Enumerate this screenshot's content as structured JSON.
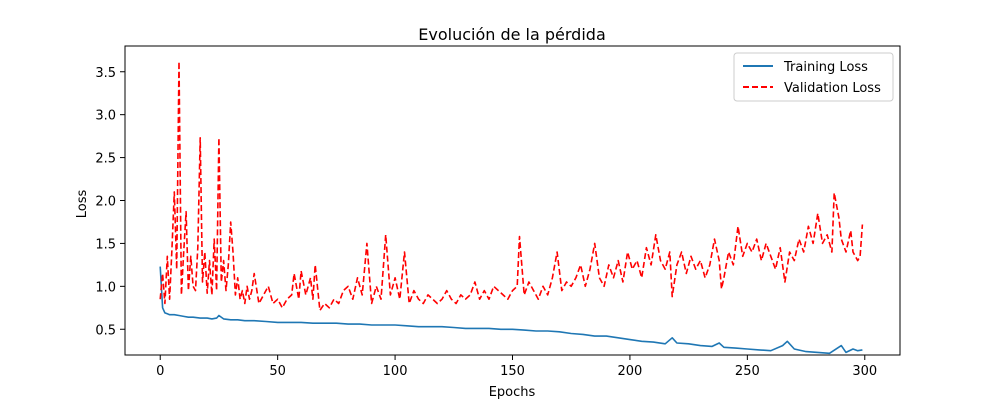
{
  "chart_data": {
    "type": "line",
    "title": "Evolución de la pérdida",
    "xlabel": "Epochs",
    "ylabel": "Loss",
    "xlim": [
      -15,
      315
    ],
    "ylim": [
      0.2,
      3.8
    ],
    "xticks": [
      0,
      50,
      100,
      150,
      200,
      250,
      300
    ],
    "yticks": [
      0.5,
      1.0,
      1.5,
      2.0,
      2.5,
      3.0,
      3.5
    ],
    "grid": false,
    "legend": "top-right",
    "series": [
      {
        "name": "Training Loss",
        "color": "#1f77b4",
        "dash": "solid",
        "points": [
          [
            0,
            1.23
          ],
          [
            1,
            0.75
          ],
          [
            2,
            0.69
          ],
          [
            3,
            0.68
          ],
          [
            4,
            0.67
          ],
          [
            6,
            0.67
          ],
          [
            8,
            0.66
          ],
          [
            10,
            0.65
          ],
          [
            12,
            0.64
          ],
          [
            14,
            0.64
          ],
          [
            17,
            0.63
          ],
          [
            20,
            0.63
          ],
          [
            22,
            0.62
          ],
          [
            24,
            0.63
          ],
          [
            25,
            0.66
          ],
          [
            27,
            0.62
          ],
          [
            30,
            0.61
          ],
          [
            33,
            0.61
          ],
          [
            36,
            0.6
          ],
          [
            40,
            0.6
          ],
          [
            45,
            0.59
          ],
          [
            50,
            0.58
          ],
          [
            55,
            0.58
          ],
          [
            60,
            0.58
          ],
          [
            65,
            0.57
          ],
          [
            70,
            0.57
          ],
          [
            75,
            0.57
          ],
          [
            80,
            0.56
          ],
          [
            85,
            0.56
          ],
          [
            90,
            0.55
          ],
          [
            95,
            0.55
          ],
          [
            100,
            0.55
          ],
          [
            105,
            0.54
          ],
          [
            110,
            0.53
          ],
          [
            115,
            0.53
          ],
          [
            120,
            0.53
          ],
          [
            125,
            0.52
          ],
          [
            130,
            0.51
          ],
          [
            135,
            0.51
          ],
          [
            140,
            0.51
          ],
          [
            145,
            0.5
          ],
          [
            150,
            0.5
          ],
          [
            155,
            0.49
          ],
          [
            160,
            0.48
          ],
          [
            165,
            0.48
          ],
          [
            170,
            0.47
          ],
          [
            175,
            0.45
          ],
          [
            180,
            0.44
          ],
          [
            185,
            0.42
          ],
          [
            190,
            0.42
          ],
          [
            195,
            0.4
          ],
          [
            200,
            0.38
          ],
          [
            205,
            0.36
          ],
          [
            210,
            0.35
          ],
          [
            215,
            0.33
          ],
          [
            218,
            0.4
          ],
          [
            220,
            0.34
          ],
          [
            225,
            0.33
          ],
          [
            230,
            0.31
          ],
          [
            235,
            0.3
          ],
          [
            238,
            0.34
          ],
          [
            240,
            0.29
          ],
          [
            245,
            0.28
          ],
          [
            250,
            0.27
          ],
          [
            255,
            0.26
          ],
          [
            260,
            0.25
          ],
          [
            265,
            0.31
          ],
          [
            267,
            0.36
          ],
          [
            270,
            0.27
          ],
          [
            275,
            0.24
          ],
          [
            280,
            0.23
          ],
          [
            285,
            0.22
          ],
          [
            290,
            0.31
          ],
          [
            292,
            0.23
          ],
          [
            295,
            0.27
          ],
          [
            297,
            0.25
          ],
          [
            299,
            0.26
          ]
        ]
      },
      {
        "name": "Validation Loss",
        "color": "#ff0000",
        "dash": "dashed",
        "points": [
          [
            0,
            0.85
          ],
          [
            1,
            1.15
          ],
          [
            2,
            0.8
          ],
          [
            3,
            1.35
          ],
          [
            4,
            0.85
          ],
          [
            5,
            1.45
          ],
          [
            6,
            2.1
          ],
          [
            7,
            1.2
          ],
          [
            8,
            3.62
          ],
          [
            9,
            0.9
          ],
          [
            10,
            1.4
          ],
          [
            11,
            1.87
          ],
          [
            12,
            0.95
          ],
          [
            13,
            1.35
          ],
          [
            14,
            1.0
          ],
          [
            15,
            0.95
          ],
          [
            16,
            1.45
          ],
          [
            17,
            2.73
          ],
          [
            18,
            1.05
          ],
          [
            19,
            1.4
          ],
          [
            20,
            0.92
          ],
          [
            21,
            1.3
          ],
          [
            22,
            0.9
          ],
          [
            23,
            1.55
          ],
          [
            24,
            0.95
          ],
          [
            25,
            2.73
          ],
          [
            26,
            1.05
          ],
          [
            27,
            1.3
          ],
          [
            28,
            0.95
          ],
          [
            29,
            1.25
          ],
          [
            30,
            1.75
          ],
          [
            31,
            1.4
          ],
          [
            32,
            0.9
          ],
          [
            33,
            1.1
          ],
          [
            34,
            0.85
          ],
          [
            35,
            0.95
          ],
          [
            36,
            0.8
          ],
          [
            37,
            1.0
          ],
          [
            38,
            0.85
          ],
          [
            39,
            0.95
          ],
          [
            40,
            1.15
          ],
          [
            42,
            0.8
          ],
          [
            44,
            0.9
          ],
          [
            46,
            1.0
          ],
          [
            48,
            0.8
          ],
          [
            50,
            0.85
          ],
          [
            52,
            0.75
          ],
          [
            54,
            0.85
          ],
          [
            56,
            0.9
          ],
          [
            57,
            1.15
          ],
          [
            59,
            0.85
          ],
          [
            60,
            1.18
          ],
          [
            62,
            0.9
          ],
          [
            64,
            1.1
          ],
          [
            65,
            0.85
          ],
          [
            66,
            1.25
          ],
          [
            68,
            0.72
          ],
          [
            70,
            0.8
          ],
          [
            72,
            0.75
          ],
          [
            74,
            0.85
          ],
          [
            76,
            0.8
          ],
          [
            78,
            0.95
          ],
          [
            80,
            1.0
          ],
          [
            82,
            0.85
          ],
          [
            84,
            1.1
          ],
          [
            86,
            0.9
          ],
          [
            88,
            1.5
          ],
          [
            90,
            0.8
          ],
          [
            92,
            1.0
          ],
          [
            94,
            0.85
          ],
          [
            96,
            1.6
          ],
          [
            98,
            0.9
          ],
          [
            100,
            1.1
          ],
          [
            102,
            0.85
          ],
          [
            104,
            1.4
          ],
          [
            106,
            0.8
          ],
          [
            108,
            0.95
          ],
          [
            110,
            0.85
          ],
          [
            112,
            0.8
          ],
          [
            114,
            0.9
          ],
          [
            116,
            0.85
          ],
          [
            118,
            0.8
          ],
          [
            120,
            0.85
          ],
          [
            122,
            0.95
          ],
          [
            124,
            0.85
          ],
          [
            126,
            0.8
          ],
          [
            128,
            0.9
          ],
          [
            130,
            0.85
          ],
          [
            132,
            0.9
          ],
          [
            134,
            1.05
          ],
          [
            136,
            0.85
          ],
          [
            138,
            0.95
          ],
          [
            140,
            0.85
          ],
          [
            142,
            1.0
          ],
          [
            144,
            0.95
          ],
          [
            146,
            0.9
          ],
          [
            148,
            0.85
          ],
          [
            150,
            0.95
          ],
          [
            152,
            1.0
          ],
          [
            153,
            1.58
          ],
          [
            155,
            0.9
          ],
          [
            157,
            1.05
          ],
          [
            159,
            0.95
          ],
          [
            161,
            0.85
          ],
          [
            163,
            1.0
          ],
          [
            165,
            0.9
          ],
          [
            167,
            1.1
          ],
          [
            169,
            1.4
          ],
          [
            171,
            0.95
          ],
          [
            173,
            1.05
          ],
          [
            175,
            1.0
          ],
          [
            177,
            1.1
          ],
          [
            179,
            1.25
          ],
          [
            181,
            1.0
          ],
          [
            183,
            1.2
          ],
          [
            185,
            1.5
          ],
          [
            187,
            1.1
          ],
          [
            189,
            1.0
          ],
          [
            191,
            1.25
          ],
          [
            193,
            1.1
          ],
          [
            195,
            1.3
          ],
          [
            197,
            1.05
          ],
          [
            199,
            1.4
          ],
          [
            201,
            1.2
          ],
          [
            203,
            1.3
          ],
          [
            205,
            1.1
          ],
          [
            207,
            1.45
          ],
          [
            209,
            1.25
          ],
          [
            211,
            1.6
          ],
          [
            213,
            1.3
          ],
          [
            215,
            1.2
          ],
          [
            217,
            1.4
          ],
          [
            218,
            0.88
          ],
          [
            220,
            1.25
          ],
          [
            222,
            1.4
          ],
          [
            224,
            1.15
          ],
          [
            226,
            1.35
          ],
          [
            228,
            1.2
          ],
          [
            230,
            1.3
          ],
          [
            232,
            1.1
          ],
          [
            234,
            1.25
          ],
          [
            236,
            1.55
          ],
          [
            238,
            1.3
          ],
          [
            239,
            0.97
          ],
          [
            240,
            1.1
          ],
          [
            242,
            1.4
          ],
          [
            244,
            1.25
          ],
          [
            246,
            1.7
          ],
          [
            248,
            1.35
          ],
          [
            250,
            1.5
          ],
          [
            252,
            1.4
          ],
          [
            254,
            1.55
          ],
          [
            256,
            1.3
          ],
          [
            258,
            1.5
          ],
          [
            260,
            1.35
          ],
          [
            262,
            1.2
          ],
          [
            264,
            1.45
          ],
          [
            266,
            1.05
          ],
          [
            268,
            1.4
          ],
          [
            270,
            1.3
          ],
          [
            272,
            1.55
          ],
          [
            274,
            1.4
          ],
          [
            276,
            1.7
          ],
          [
            278,
            1.5
          ],
          [
            280,
            1.85
          ],
          [
            282,
            1.5
          ],
          [
            284,
            1.6
          ],
          [
            286,
            1.4
          ],
          [
            287,
            2.09
          ],
          [
            289,
            1.8
          ],
          [
            290,
            1.55
          ],
          [
            292,
            1.4
          ],
          [
            294,
            1.65
          ],
          [
            295,
            1.4
          ],
          [
            297,
            1.3
          ],
          [
            298,
            1.35
          ],
          [
            299,
            1.72
          ]
        ]
      }
    ]
  }
}
